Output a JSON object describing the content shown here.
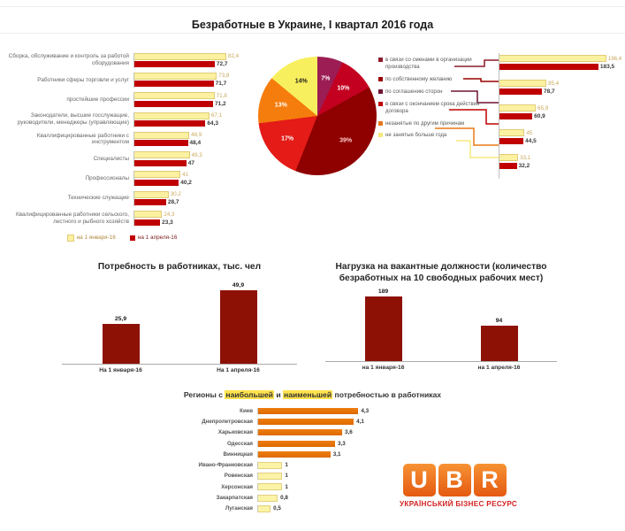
{
  "page_title": "Безработные в Украине, I квартал 2016 года",
  "chart_data": [
    {
      "id": "occupations",
      "type": "bar",
      "orientation": "horizontal",
      "categories": [
        "Сборка, обслуживание и контроль за работой оборудования",
        "Работники сферы торговли и услуг",
        "простейшие профессии",
        "Законодатели, высшие госслужащие, руководители, менеджеры (управляющие)",
        "Кваллифицированные работники с инструментом",
        "Специалисты",
        "Профессионалы",
        "Технические служащие",
        "Квалифицированные работники сельского, лестного и рыбного хозяйств"
      ],
      "series": [
        {
          "name": "на 1 января-16",
          "color": "#FBF1A0",
          "values": [
            82.4,
            73.8,
            71.8,
            67.1,
            48.9,
            49.3,
            41,
            30.2,
            24.3
          ]
        },
        {
          "name": "на 1 апреля-16",
          "color": "#C00000",
          "values": [
            72.7,
            71.7,
            71.2,
            64.3,
            48.4,
            47,
            40.2,
            28.7,
            23.3
          ]
        }
      ],
      "xlim": [
        0,
        96
      ],
      "legend_position": "bottom"
    },
    {
      "id": "structure-pie",
      "type": "pie",
      "values": [
        7,
        10,
        39,
        17,
        13,
        14
      ],
      "labels": [
        "7%",
        "10%",
        "39%",
        "17%",
        "13%",
        "14%"
      ],
      "colors": [
        "#9B1D54",
        "#C40020",
        "#8F0000",
        "#E41B17",
        "#F57D0D",
        "#F8EF5E"
      ],
      "label_colors": [
        "#FFFFFF",
        "#FFFFFF",
        "#FFCCCC",
        "#FFFFFF",
        "#FFFFFF",
        "#1A1A1A"
      ],
      "start_angle_deg": 0
    },
    {
      "id": "reasons",
      "type": "bar",
      "orientation": "horizontal",
      "legend": [
        {
          "label": "в связи со сменами в организации производства",
          "color": "#8B1A2C"
        },
        {
          "label": "по собственному желанию",
          "color": "#9B0000"
        },
        {
          "label": "по соглашению сторон",
          "color": "#6F1430"
        },
        {
          "label": "в связи с окончанием срока действия договора",
          "color": "#C00000"
        },
        {
          "label": "незанятые по другим причинам",
          "color": "#E87817"
        },
        {
          "label": "не занятые больше года",
          "color": "#F5E97E"
        }
      ],
      "series": [
        {
          "name": "на 1 января-16",
          "color": "#FBF1A0",
          "values": [
            196.4,
            85.4,
            65.9,
            45,
            33.1
          ]
        },
        {
          "name": "на 1 апреля-16",
          "color": "#C00000",
          "values": [
            183.5,
            78.7,
            60.9,
            44.5,
            32.2
          ]
        }
      ],
      "xlim": [
        0,
        205
      ]
    },
    {
      "id": "demand",
      "type": "bar",
      "title": "Потребность в работниках, тыс. чел",
      "categories": [
        "На 1 января-16",
        "На 1 апреля-16"
      ],
      "values": [
        25.9,
        49.9
      ],
      "bar_color": "#8E1106",
      "ylim": [
        0,
        53
      ]
    },
    {
      "id": "load",
      "type": "bar",
      "title": "Нагрузка на вакантные должности (количество безработных на 10 свободных рабочих мест)",
      "categories": [
        "на 1 января-16",
        "на 1 апреля-16"
      ],
      "values": [
        189,
        94
      ],
      "bar_color": "#8E1106",
      "ylim": [
        0,
        195
      ]
    },
    {
      "id": "regions",
      "type": "bar",
      "orientation": "horizontal",
      "title_parts": {
        "p1": "Регионы с ",
        "hl1": "наибольшей",
        "p2": " и ",
        "hl2": "наименьшей",
        "p3": " потребностью в работниках"
      },
      "rows": [
        {
          "label": "Киев",
          "value": 4.3,
          "group": "high"
        },
        {
          "label": "Днепропетровская",
          "value": 4.1,
          "group": "high"
        },
        {
          "label": "Харьковская",
          "value": 3.6,
          "group": "high"
        },
        {
          "label": "Одесская",
          "value": 3.3,
          "group": "high"
        },
        {
          "label": "Винницкая",
          "value": 3.1,
          "group": "high"
        },
        {
          "label": "Ивано-Франковская",
          "value": 1,
          "group": "low"
        },
        {
          "label": "Ровенская",
          "value": 1,
          "group": "low"
        },
        {
          "label": "Херсонская",
          "value": 1,
          "group": "low"
        },
        {
          "label": "Закарпатская",
          "value": 0.8,
          "group": "low"
        },
        {
          "label": "Луганская",
          "value": 0.5,
          "group": "low"
        }
      ],
      "group_colors": {
        "high": "#EE7D11",
        "low": "#FBF3A6"
      },
      "xlim": [
        0,
        4.55
      ]
    }
  ],
  "logo": {
    "letters": [
      "U",
      "B",
      "R"
    ],
    "caption": "УКРАЇНСЬКИЙ БІЗНЕС РЕСУРС",
    "block_color_top": "#F79233",
    "block_color_bottom": "#E45A12",
    "caption_color": "#D42222"
  }
}
